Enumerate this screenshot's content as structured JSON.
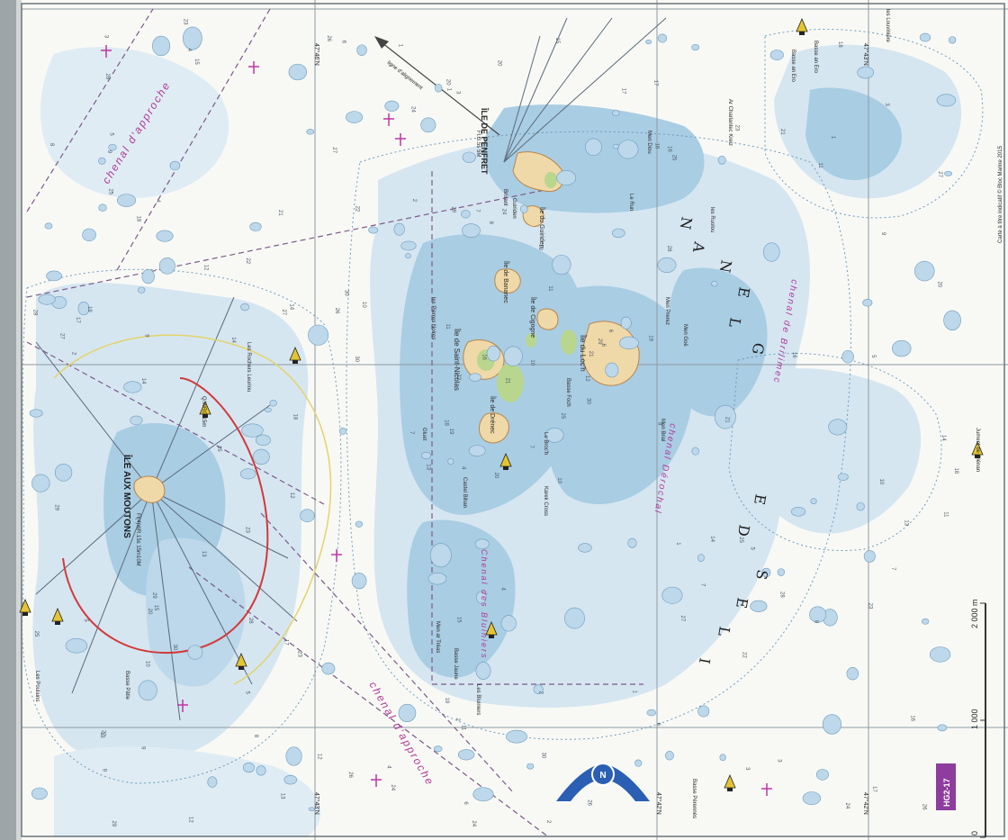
{
  "map": {
    "region_name_letters": [
      "I",
      "L",
      "E",
      "S",
      "D",
      "E",
      "G",
      "L",
      "E",
      "N",
      "A",
      "N"
    ],
    "islands": [
      {
        "name": "ÎLE AUX MOUTONS"
      },
      {
        "name": "ÎLE DE PENFRET"
      },
      {
        "name": "Île du Loc'h"
      },
      {
        "name": "Île de Saint-Nicolas"
      },
      {
        "name": "Île de Drénec"
      },
      {
        "name": "Île de Cigogne"
      },
      {
        "name": "Île de Bananec"
      },
      {
        "name": "Île du Guiriden"
      }
    ],
    "channels": [
      {
        "name": "chenal d'approche"
      },
      {
        "name": "chenal d'approche"
      },
      {
        "name": "chenal de Brilimec"
      },
      {
        "name": "chenal Dérochal"
      },
      {
        "name": "Chenal des Bluiniers"
      }
    ],
    "features": [
      {
        "name": "Les Poulains"
      },
      {
        "name": "Basse Pâtie"
      },
      {
        "name": "Men ar Tréas"
      },
      {
        "name": "Basse Jaune"
      },
      {
        "name": "Les Bluiniers"
      },
      {
        "name": "Guiriden"
      },
      {
        "name": "Basse Foch"
      },
      {
        "name": "Castel Bihan"
      },
      {
        "name": "Karek Cross"
      },
      {
        "name": "Men Goë"
      },
      {
        "name": "les Pierres Noires"
      },
      {
        "name": "Les Rochers Leuriou"
      },
      {
        "name": "Le Broc'h"
      },
      {
        "name": "Ar Charlantec Kreiz"
      },
      {
        "name": "les Ruolou"
      },
      {
        "name": "Jument de Glénan"
      },
      {
        "name": "Basse an Ero"
      },
      {
        "name": "Basse Pérennès"
      },
      {
        "name": "Men Diou"
      },
      {
        "name": "Le Run"
      },
      {
        "name": "Men Brial"
      },
      {
        "name": "Gluet"
      },
      {
        "name": "les Louvinière"
      },
      {
        "name": "Basse an Ero"
      },
      {
        "name": "Brisant"
      },
      {
        "name": "Men Prerez"
      }
    ],
    "soundings": [
      "20",
      "18",
      "19",
      "22",
      "21",
      "23",
      "17",
      "24",
      "16",
      "25",
      "15",
      "26",
      "14",
      "27",
      "13",
      "28",
      "12",
      "29",
      "11",
      "30",
      "10",
      "9",
      "8",
      "7",
      "6",
      "5",
      "4",
      "3",
      "2",
      "1"
    ],
    "coordinates": [
      "47°46'N",
      "47°43'N",
      "47°42'N",
      "47°42'N",
      "47°43'N"
    ],
    "light_labels": [
      {
        "text": "Fl(4)WR.15s 15m10M"
      },
      {
        "text": "Fl.G.5s 5M"
      },
      {
        "text": "Q.WRG.15m"
      }
    ],
    "bearing_label": "ligne d'alignement",
    "scale_bar": {
      "ticks": [
        "0",
        "1 000",
        "2 000 m"
      ]
    },
    "badge": "HG2-17",
    "compass_label": "N",
    "copyright": "Carte à titre indicatif © Bloc Marine 2015",
    "colors": {
      "paper": "#f8f9f5",
      "shallow": "#d5e6f1",
      "very_shallow": "#a9cde3",
      "land": "#f0d9a8",
      "land_edge": "#b9864b",
      "vegetation": "#b9d68e",
      "channel_magenta": "#c234a4",
      "sector_red": "#d23a3a",
      "sector_yellow": "#e4d36a",
      "badge": "#8e3d9e",
      "compass_blue": "#2a5fb4"
    }
  }
}
